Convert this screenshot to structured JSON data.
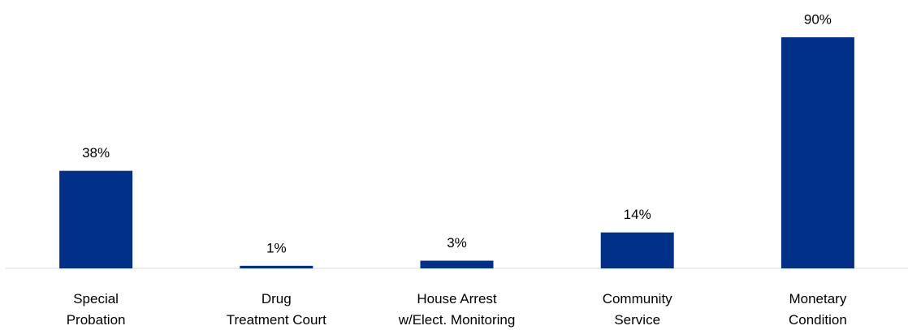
{
  "chart_data": {
    "type": "bar",
    "categories": [
      "Special\nProbation",
      "Drug\nTreatment Court",
      "House Arrest\nw/Elect. Monitoring",
      "Community\nService",
      "Monetary\nCondition"
    ],
    "values": [
      38,
      1,
      3,
      14,
      90
    ],
    "value_labels": [
      "38%",
      "1%",
      "3%",
      "14%",
      "90%"
    ],
    "color": "#003087"
  }
}
